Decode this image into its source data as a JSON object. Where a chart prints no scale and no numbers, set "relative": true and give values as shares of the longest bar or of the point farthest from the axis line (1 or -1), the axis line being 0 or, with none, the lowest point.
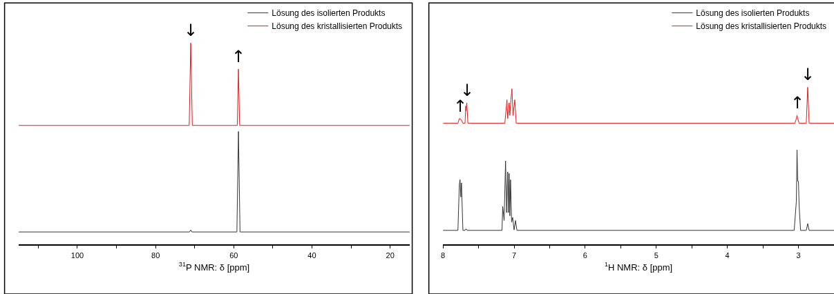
{
  "chart_data": [
    {
      "type": "line",
      "relative": true,
      "xlabel": "$^{31}$P NMR: δ [ppm]",
      "xlim": [
        115,
        15
      ],
      "xticks": [
        {
          "value": 110,
          "label": null
        },
        100,
        {
          "value": 90,
          "label": null
        },
        80,
        {
          "value": 70,
          "label": null
        },
        60,
        {
          "value": 50,
          "label": null
        },
        40,
        {
          "value": 30,
          "label": null
        },
        20
      ],
      "legend": "top right",
      "marker": "none",
      "line_style": "solid",
      "series": [
        {
          "name": "Lösung des isolierten Produkts",
          "color": "#333333",
          "x": [
            115,
            71.3,
            71,
            70.7,
            59.2,
            58.8,
            58.4,
            15
          ],
          "values": [
            0.06,
            0.06,
            0.07,
            0.06,
            0.06,
            0.56,
            0.06,
            0.06
          ]
        },
        {
          "name": "Lösung des kristallisierten Produkts",
          "color": "#e41a1c",
          "x": [
            115,
            71.4,
            71,
            70.6,
            59.1,
            58.8,
            58.5,
            15
          ],
          "values": [
            0.59,
            0.59,
            1,
            0.59,
            0.59,
            0.87,
            0.59,
            0.59
          ]
        }
      ],
      "annotations": [
        {
          "text": "↓",
          "x": 71,
          "y": 1
        },
        {
          "text": "↑",
          "x": 58.8,
          "y": 0.87
        }
      ]
    },
    {
      "type": "line",
      "relative": true,
      "xlabel": "$^{1}$H NMR: δ [ppm]",
      "xlim": [
        8,
        2.5
      ],
      "xticks": [
        8,
        {
          "value": 7.5,
          "label": null
        },
        7,
        {
          "value": 6.5,
          "label": null
        },
        6,
        {
          "value": 5.5,
          "label": null
        },
        5,
        {
          "value": 4.5,
          "label": null
        },
        4,
        {
          "value": 3.5,
          "label": null
        },
        3
      ],
      "legend": "top right",
      "marker": "none",
      "line_style": "solid",
      "series": [
        {
          "name": "Lösung des isolierten Produkts",
          "color": "#333333",
          "x": [
            8,
            7.79,
            7.77,
            7.76,
            7.75,
            7.74,
            7.72,
            7.69,
            7.68,
            7.67,
            7.66,
            7.17,
            7.16,
            7.14,
            7.12,
            7.105,
            7.09,
            7.08,
            7.07,
            7.06,
            7.05,
            7.035,
            7.02,
            7.0,
            6.98,
            6.96,
            3.06,
            3.03,
            3.02,
            3.01,
            3.0,
            2.99,
            2.97,
            2.89,
            2.87,
            2.85,
            2.5
          ],
          "values": [
            0.087,
            0.087,
            0.38,
            0.41,
            0.3,
            0.39,
            0.087,
            0.087,
            0.095,
            0.095,
            0.087,
            0.087,
            0.24,
            0.15,
            0.53,
            0.2,
            0.46,
            0.2,
            0.45,
            0.18,
            0.41,
            0.14,
            0.17,
            0.09,
            0.15,
            0.087,
            0.087,
            0.27,
            0.6,
            0.4,
            0.4,
            0.24,
            0.087,
            0.087,
            0.13,
            0.087,
            0.087
          ]
        },
        {
          "name": "Lösung des kristallisierten Produkts",
          "color": "#e41a1c",
          "x": [
            8,
            7.79,
            7.77,
            7.76,
            7.74,
            7.72,
            7.69,
            7.68,
            7.675,
            7.665,
            7.65,
            7.13,
            7.1,
            7.09,
            7.07,
            7.06,
            7.045,
            7.03,
            7.015,
            6.99,
            6.97,
            3.05,
            3.03,
            3.02,
            3.01,
            2.99,
            2.89,
            2.87,
            2.85,
            2.5
          ],
          "values": [
            0.77,
            0.77,
            0.8,
            0.8,
            0.79,
            0.77,
            0.77,
            0.88,
            0.85,
            0.9,
            0.77,
            0.77,
            0.92,
            0.8,
            0.9,
            0.82,
            0.92,
            0.99,
            0.82,
            0.92,
            0.77,
            0.77,
            0.8,
            0.82,
            0.8,
            0.77,
            0.77,
            1.0,
            0.77,
            0.77
          ]
        }
      ],
      "annotations": [
        {
          "text": "↑",
          "x": 7.76,
          "y": 0.8
        },
        {
          "text": "↓",
          "x": 7.665,
          "y": 0.9
        },
        {
          "text": "↑",
          "x": 3.02,
          "y": 0.82
        },
        {
          "text": "↓",
          "x": 2.87,
          "y": 1.0
        }
      ]
    }
  ]
}
